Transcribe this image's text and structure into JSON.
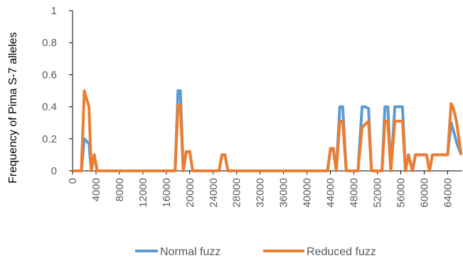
{
  "chart_data": {
    "type": "line",
    "ylabel": "Frequency of Pima S-7 alleles",
    "xlabel": "",
    "xlim": [
      0,
      66500
    ],
    "ylim": [
      0,
      1
    ],
    "yticks": [
      "0",
      "0.2",
      "0.4",
      "0.6",
      "0.8",
      "1"
    ],
    "xticks": [
      "0",
      "4000",
      "8000",
      "12000",
      "16000",
      "20000",
      "24000",
      "28000",
      "32000",
      "36000",
      "40000",
      "44000",
      "48000",
      "52000",
      "56000",
      "60000",
      "64000"
    ],
    "legend_position": "bottom",
    "colors": {
      "normal": "#5b9bd5",
      "reduced": "#ed7d31",
      "axis": "#000000",
      "text": "#595959"
    },
    "series": [
      {
        "name": "Normal fuzz",
        "x": [
          0,
          1500,
          2000,
          2800,
          3200,
          3700,
          4200,
          17500,
          18000,
          18400,
          18900,
          19400,
          20000,
          20500,
          25000,
          25500,
          26000,
          26500,
          43500,
          44000,
          44500,
          45000,
          45600,
          46100,
          46700,
          48700,
          49400,
          49900,
          50500,
          51000,
          52800,
          53300,
          53800,
          54300,
          55000,
          55500,
          56300,
          56800,
          57300,
          58000,
          58500,
          59000,
          60400,
          60900,
          61400,
          61800,
          64000,
          64600,
          65000,
          65500,
          66300
        ],
        "values": [
          0,
          0,
          0.2,
          0.17,
          0,
          0.1,
          0,
          0,
          0.5,
          0.5,
          0,
          0.12,
          0.12,
          0,
          0,
          0.1,
          0.1,
          0,
          0,
          0.13,
          0.13,
          0,
          0.4,
          0.4,
          0,
          0,
          0.4,
          0.4,
          0.39,
          0,
          0,
          0.4,
          0.4,
          0,
          0.4,
          0.4,
          0.4,
          0,
          0.1,
          0,
          0.1,
          0.1,
          0.1,
          0,
          0.1,
          0.1,
          0.1,
          0.3,
          0.25,
          0.18,
          0.1
        ]
      },
      {
        "name": "Reduced fuzz",
        "x": [
          0,
          1500,
          2000,
          2800,
          3200,
          3700,
          4200,
          17500,
          18000,
          18400,
          18900,
          19400,
          20000,
          20500,
          25000,
          25500,
          26000,
          26500,
          43500,
          44000,
          44500,
          45000,
          45600,
          46100,
          46700,
          48700,
          49400,
          49900,
          50500,
          51000,
          52800,
          53300,
          53800,
          54300,
          55000,
          55500,
          56300,
          56800,
          57300,
          58000,
          58500,
          59000,
          60400,
          60900,
          61400,
          61800,
          64000,
          64600,
          65000,
          65500,
          66300
        ],
        "values": [
          0,
          0,
          0.5,
          0.4,
          0,
          0.1,
          0,
          0,
          0.41,
          0.41,
          0,
          0.12,
          0.12,
          0,
          0,
          0.1,
          0.1,
          0,
          0,
          0.14,
          0.14,
          0,
          0.31,
          0.31,
          0,
          0,
          0.27,
          0.29,
          0.31,
          0,
          0,
          0.31,
          0.31,
          0,
          0.31,
          0.31,
          0.31,
          0,
          0.1,
          0,
          0.1,
          0.1,
          0.1,
          0,
          0.1,
          0.1,
          0.1,
          0.42,
          0.39,
          0.31,
          0.1
        ]
      }
    ]
  }
}
